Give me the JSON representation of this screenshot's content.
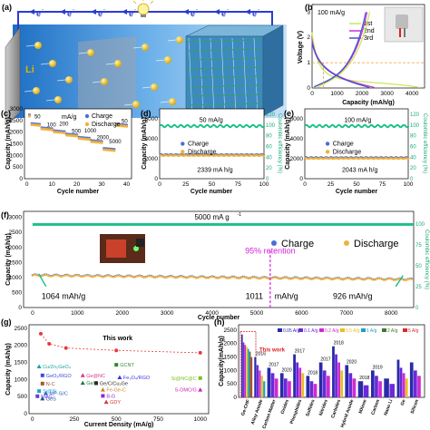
{
  "panels": {
    "a": {
      "label": "(a)",
      "electron_label": "e",
      "electron_sup": "-",
      "li_label": "Li",
      "electron_count": 8
    },
    "b": {
      "label": "(b)",
      "rate": "100 mA/g",
      "legend": [
        "1st",
        "2nd",
        "3rd"
      ],
      "xlabel": "Capacity (mAh/g)",
      "ylabel": "Voltage (V)",
      "xticks": [
        "0",
        "1000",
        "2000",
        "3000",
        "4000"
      ],
      "yticks": [
        "0",
        "1",
        "2",
        "3"
      ],
      "colors": {
        "1st": "#c8e85a",
        "2nd": "#cc33cc",
        "3rd": "#3a55d4",
        "marker": "#f0a030"
      }
    },
    "c": {
      "label": "(c)",
      "rate_unit": "mA/g",
      "rates": [
        "50",
        "100",
        "200",
        "500",
        "1000",
        "2000",
        "5000",
        "50"
      ],
      "legend": [
        "Charge",
        "Discharge"
      ],
      "xlabel": "Cycle number",
      "ylabel": "Capacity (mAh/g)",
      "xticks": [
        "0",
        "10",
        "20",
        "30",
        "40"
      ],
      "yticks": [
        "0",
        "500",
        "1000",
        "1500",
        "2000",
        "2500",
        "3000"
      ]
    },
    "d": {
      "label": "(d)",
      "rate": "50 mA/g",
      "legend": [
        "Charge",
        "Discharge"
      ],
      "value": "2339 mA h/g",
      "xlabel": "Cycle number",
      "ylabel": "Capacity (mAh/g)",
      "y2label": "Coulombic efficiency (%)",
      "xticks": [
        "0",
        "25",
        "50",
        "75",
        "100"
      ],
      "yticks": [
        "0",
        "2000",
        "4000",
        "6000"
      ],
      "y2ticks": [
        "0",
        "20",
        "40",
        "60",
        "80",
        "100",
        "120"
      ]
    },
    "e": {
      "label": "(e)",
      "rate": "100 mA/g",
      "legend": [
        "Charge",
        "Discharge"
      ],
      "value": "2043 mA h/g",
      "xlabel": "Cycle number",
      "ylabel": "Capacity (mAh/g)",
      "y2label": "Coulombic efficiency (%)",
      "xticks": [
        "0",
        "25",
        "50",
        "75",
        "100"
      ],
      "yticks": [
        "0",
        "2000",
        "4000",
        "6000"
      ],
      "y2ticks": [
        "0",
        "20",
        "40",
        "60",
        "80",
        "100",
        "120"
      ]
    },
    "f": {
      "label": "(f)",
      "rate": "5000 mA g",
      "rate_sup": "-1",
      "legend": [
        "Charge",
        "Discharge"
      ],
      "retention": "95% retention",
      "annotations": [
        "1064 mAh/g",
        "1011",
        "mAh/g",
        "926 mAh/g"
      ],
      "xlabel": "Cycle number",
      "ylabel": "Capacity (mAh/g)",
      "y2label": "Coulombic efficiency (%)",
      "xticks": [
        "0",
        "1000",
        "2000",
        "3000",
        "4000",
        "5000",
        "6000",
        "7000",
        "8000"
      ],
      "yticks": [
        "0",
        "500",
        "1000",
        "1500",
        "2000",
        "2500",
        "3000"
      ],
      "y2ticks": [
        "0",
        "25",
        "50",
        "75",
        "100"
      ]
    },
    "g": {
      "label": "(g)",
      "this_work": "This work",
      "xlabel": "Current Density (mA/g)",
      "ylabel": "Capacity (mAh/g)",
      "xticks": [
        "0",
        "250",
        "500",
        "750",
        "1000"
      ],
      "yticks": [
        "0",
        "500",
        "1000",
        "1500",
        "2000",
        "2500"
      ],
      "refs": [
        "Cu/Zn₂GeO₄",
        "GeO₂/RGO",
        "Ge@NC",
        "N-C",
        "Ge/C",
        "Ge/C/Cu₃Ge",
        "Fe-Ge-C",
        "B-G",
        "MP-Si/C",
        "Si@Si",
        "GeS",
        "MAG",
        "GDY",
        "GCNT",
        "Fe₃O₄/RGO",
        "Si@NC@C",
        "S-OMC/G"
      ]
    },
    "h": {
      "label": "(h)",
      "this_work": "This work",
      "ylabel": "Capacity(mAh/g)",
      "yticks": [
        "0",
        "500",
        "1000",
        "1500",
        "2000",
        "2500"
      ],
      "rates": [
        "0.05 A/g",
        "0.1 A/g",
        "0.2 A/g",
        "0.5 A/g",
        "1 A/g",
        "2 A/g",
        "5 A/g"
      ],
      "years": [
        "2016",
        "2017",
        "2020",
        "2017",
        "2018",
        "2017",
        "2018",
        "2020",
        "2018",
        "2019"
      ],
      "categories": [
        "Ge-CHF",
        "Alloy Anode",
        "Carbon Matter",
        "Oxides",
        "Phosphides",
        "Sulfides",
        "Nitrides",
        "Carbides",
        "Hybrid Anode",
        "MXene",
        "Carbon",
        "Nano Li",
        "Ge",
        "Silicon"
      ]
    }
  }
}
